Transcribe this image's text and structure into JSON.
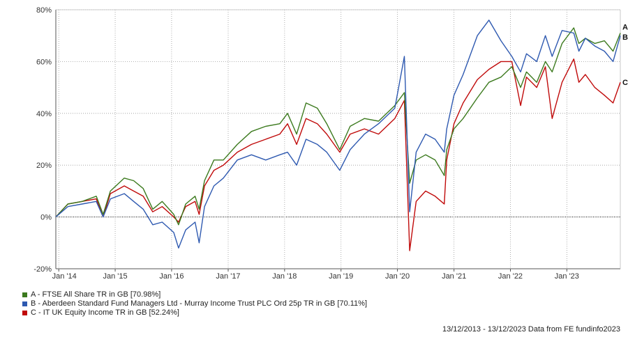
{
  "chart_data": {
    "type": "line",
    "ylim": [
      -20,
      80
    ],
    "y_ticks": [
      "80%",
      "60%",
      "40%",
      "20%",
      "0%",
      "-20%"
    ],
    "y_tick_values": [
      80,
      60,
      40,
      20,
      0,
      -20
    ],
    "x_range": [
      "2013-12-13",
      "2023-12-13"
    ],
    "x_ticks": [
      "Jan '14",
      "Jan '15",
      "Jan '16",
      "Jan '17",
      "Jan '18",
      "Jan '19",
      "Jan '20",
      "Jan '21",
      "Jan '22",
      "Jan '23"
    ],
    "x_tick_dates": [
      "2014-01-01",
      "2015-01-01",
      "2016-01-01",
      "2017-01-01",
      "2018-01-01",
      "2019-01-01",
      "2020-01-01",
      "2021-01-01",
      "2022-01-01",
      "2023-01-01"
    ],
    "grid": true,
    "zero_line": true,
    "x": [
      "2013-12-13",
      "2014-03-01",
      "2014-06-01",
      "2014-09-01",
      "2014-10-15",
      "2014-12-01",
      "2015-03-01",
      "2015-05-01",
      "2015-07-01",
      "2015-09-01",
      "2015-11-01",
      "2016-01-15",
      "2016-02-15",
      "2016-04-01",
      "2016-06-01",
      "2016-06-27",
      "2016-08-01",
      "2016-10-01",
      "2016-12-01",
      "2017-03-01",
      "2017-06-01",
      "2017-09-01",
      "2017-12-01",
      "2018-01-20",
      "2018-03-20",
      "2018-05-20",
      "2018-08-01",
      "2018-10-01",
      "2018-12-24",
      "2019-03-01",
      "2019-06-01",
      "2019-09-01",
      "2019-12-15",
      "2020-02-15",
      "2020-03-20",
      "2020-05-01",
      "2020-07-01",
      "2020-09-01",
      "2020-10-30",
      "2020-11-15",
      "2021-01-01",
      "2021-03-01",
      "2021-06-01",
      "2021-08-15",
      "2021-11-01",
      "2022-01-10",
      "2022-03-08",
      "2022-04-15",
      "2022-06-20",
      "2022-08-15",
      "2022-09-28",
      "2022-12-01",
      "2023-02-15",
      "2023-03-20",
      "2023-05-01",
      "2023-07-01",
      "2023-09-01",
      "2023-10-27",
      "2023-12-13"
    ],
    "series": [
      {
        "name": "A - FTSE All Share TR in GB [70.98%]",
        "label": "A",
        "color": "#3c7a1e",
        "values": [
          0,
          5,
          6,
          8,
          1,
          10,
          15,
          14,
          11,
          3,
          6,
          1,
          -3,
          5,
          8,
          3,
          14,
          22,
          22,
          28,
          33,
          35,
          36,
          40,
          32,
          44,
          42,
          36,
          26,
          35,
          38,
          37,
          43,
          48,
          13,
          22,
          24,
          22,
          16,
          26,
          34,
          38,
          46,
          52,
          54,
          58,
          50,
          56,
          52,
          60,
          56,
          67,
          73,
          67,
          69,
          67,
          68,
          64,
          71
        ]
      },
      {
        "name": "B - Aberdeen Standard Fund Managers Ltd - Murray Income Trust PLC Ord 25p TR in GB [70.11%]",
        "label": "B",
        "color": "#2e59b0",
        "values": [
          0,
          4,
          5,
          6,
          0,
          7,
          9,
          6,
          3,
          -3,
          -2,
          -6,
          -12,
          -5,
          -2,
          -10,
          4,
          12,
          15,
          22,
          24,
          22,
          24,
          25,
          20,
          30,
          28,
          25,
          18,
          26,
          32,
          36,
          42,
          62,
          2,
          25,
          32,
          30,
          25,
          34,
          47,
          55,
          70,
          76,
          68,
          62,
          56,
          63,
          60,
          70,
          62,
          72,
          71,
          64,
          69,
          66,
          64,
          60,
          70
        ]
      },
      {
        "name": "C - IT UK Equity Income TR in GB [52.24%]",
        "label": "C",
        "color": "#c00a0a",
        "values": [
          0,
          5,
          6,
          7,
          0,
          9,
          12,
          10,
          8,
          2,
          4,
          0,
          -2,
          4,
          6,
          1,
          12,
          18,
          20,
          25,
          28,
          30,
          32,
          36,
          28,
          38,
          36,
          32,
          25,
          32,
          34,
          32,
          38,
          45,
          -13,
          6,
          10,
          8,
          5,
          22,
          36,
          44,
          53,
          57,
          60,
          60,
          43,
          54,
          50,
          58,
          38,
          52,
          61,
          52,
          55,
          50,
          47,
          44,
          52
        ]
      }
    ]
  },
  "legend": [
    {
      "text": "A - FTSE All Share TR in GB [70.98%]",
      "color": "#3c7a1e"
    },
    {
      "text": "B - Aberdeen Standard Fund Managers Ltd - Murray Income Trust PLC Ord 25p TR in GB [70.11%]",
      "color": "#2e59b0"
    },
    {
      "text": "C - IT UK Equity Income TR in GB [52.24%]",
      "color": "#c00a0a"
    }
  ],
  "footer": "13/12/2013 - 13/12/2023 Data from FE fundinfo2023"
}
